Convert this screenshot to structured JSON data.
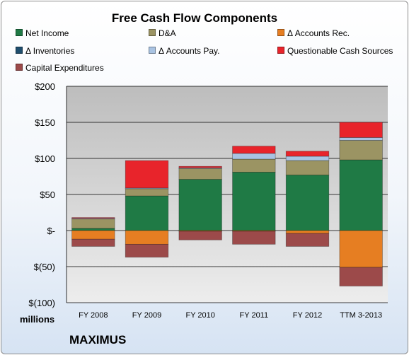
{
  "chart_data": {
    "type": "bar",
    "stacked": true,
    "title": "Free Cash Flow Components",
    "categories": [
      "FY 2008",
      "FY 2009",
      "FY 2010",
      "FY 2011",
      "FY 2012",
      "TTM 3-2013"
    ],
    "y_ticks": [
      "$200",
      "$150",
      "$100",
      "$50",
      "$-",
      "$(50)",
      "$(100)"
    ],
    "y_tick_values": [
      200,
      150,
      100,
      50,
      0,
      -50,
      -100
    ],
    "ylim": [
      -100,
      200
    ],
    "units_label": "millions",
    "grid": true,
    "legend_position": "top",
    "series": [
      {
        "name": "Net Income",
        "color": "#1f7a45",
        "values": [
          3,
          48,
          71,
          81,
          77,
          98
        ]
      },
      {
        "name": "D&A",
        "color": "#9b9463",
        "values": [
          13,
          10,
          15,
          18,
          20,
          27
        ]
      },
      {
        "name": "Δ Accounts Rec.",
        "color": "#e67e22",
        "values": [
          -12,
          -19,
          -1,
          -1,
          -4,
          -51
        ]
      },
      {
        "name": "Δ Inventories",
        "color": "#1f4e6e",
        "values": [
          0,
          0,
          0,
          0,
          0,
          0
        ]
      },
      {
        "name": "Δ Accounts Pay.",
        "color": "#a9c3e2",
        "values": [
          1,
          1,
          1,
          8,
          6,
          4
        ]
      },
      {
        "name": "Questionable Cash Sources",
        "color": "#e8242b",
        "values": [
          1,
          38,
          2,
          10,
          7,
          21
        ]
      },
      {
        "name": "Capital Expenditures",
        "color": "#9c4a4a",
        "values": [
          -10,
          -18,
          -12,
          -18,
          -18,
          -26
        ]
      }
    ]
  },
  "company": "MAXIMUS"
}
